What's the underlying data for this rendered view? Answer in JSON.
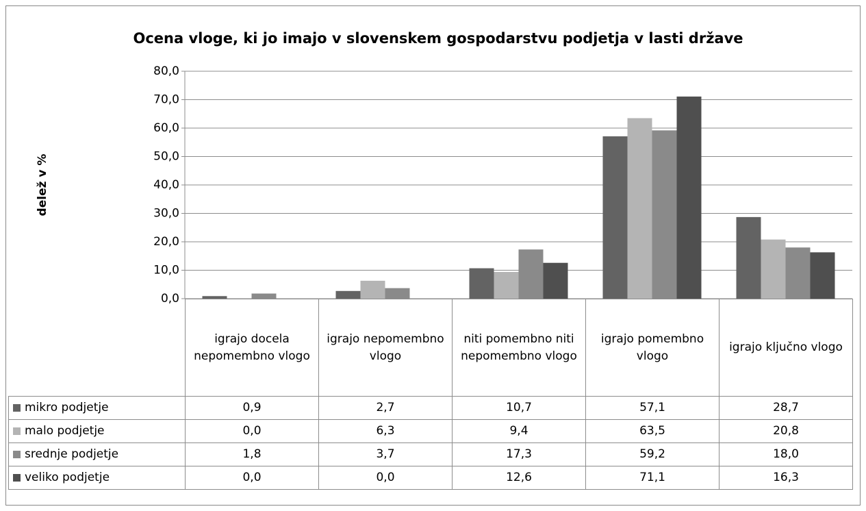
{
  "chart_data": {
    "type": "bar",
    "title": "Ocena vloge, ki jo imajo v slovenskem gospodarstvu podjetja v lasti države",
    "y_label": "delež v %",
    "categories": [
      "igrajo docela nepomembno vlogo",
      "igrajo nepomembno vlogo",
      "niti pomembno niti nepomembno vlogo",
      "igrajo pomembno vlogo",
      "igrajo ključno vlogo"
    ],
    "series": [
      {
        "name": "mikro podjetje",
        "color": "#636363",
        "values": [
          0.9,
          2.7,
          10.7,
          57.1,
          28.7
        ],
        "value_labels": [
          "0,9",
          "2,7",
          "10,7",
          "57,1",
          "28,7"
        ]
      },
      {
        "name": "malo podjetje",
        "color": "#b4b4b4",
        "values": [
          0.0,
          6.3,
          9.4,
          63.5,
          20.8
        ],
        "value_labels": [
          "0,0",
          "6,3",
          "9,4",
          "63,5",
          "20,8"
        ]
      },
      {
        "name": "srednje podjetje",
        "color": "#8a8a8a",
        "values": [
          1.8,
          3.7,
          17.3,
          59.2,
          18.0
        ],
        "value_labels": [
          "1,8",
          "3,7",
          "17,3",
          "59,2",
          "18,0"
        ]
      },
      {
        "name": "veliko podjetje",
        "color": "#4f4f4f",
        "values": [
          0.0,
          0.0,
          12.6,
          71.1,
          16.3
        ],
        "value_labels": [
          "0,0",
          "0,0",
          "12,6",
          "71,1",
          "16,3"
        ]
      }
    ],
    "ylim": [
      0,
      80
    ],
    "yticks": [
      {
        "value": 0,
        "label": "0,0"
      },
      {
        "value": 10,
        "label": "10,0"
      },
      {
        "value": 20,
        "label": "20,0"
      },
      {
        "value": 30,
        "label": "30,0"
      },
      {
        "value": 40,
        "label": "40,0"
      },
      {
        "value": 50,
        "label": "50,0"
      },
      {
        "value": 60,
        "label": "60,0"
      },
      {
        "value": 70,
        "label": "70,0"
      },
      {
        "value": 80,
        "label": "80,0"
      }
    ],
    "grid": true
  }
}
